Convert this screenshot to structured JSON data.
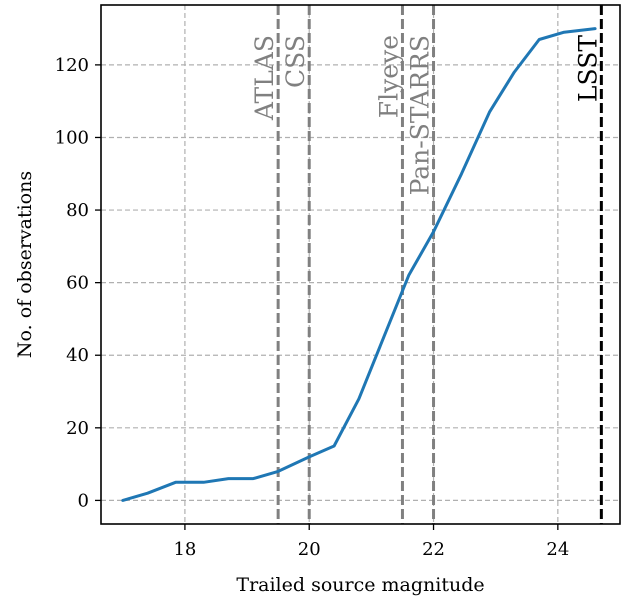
{
  "chart_data": {
    "type": "line",
    "xlabel": "Trailed source magnitude",
    "ylabel": "No. of observations",
    "xlim": [
      16.65,
      25.0
    ],
    "ylim": [
      -6.5,
      136.5
    ],
    "xticks": [
      18,
      20,
      22,
      24
    ],
    "yticks": [
      0,
      20,
      40,
      60,
      80,
      100,
      120
    ],
    "grid": true,
    "series": [
      {
        "color": "#1f77b4",
        "x": [
          17.0,
          17.4,
          17.85,
          18.3,
          18.7,
          19.1,
          19.5,
          20.0,
          20.4,
          20.8,
          21.2,
          21.6,
          22.0,
          22.45,
          22.9,
          23.3,
          23.7,
          24.1,
          24.6
        ],
        "y": [
          0,
          2,
          5,
          5,
          6,
          6,
          8,
          12,
          15,
          28,
          45,
          62,
          74,
          90,
          107,
          118,
          127,
          129,
          130
        ]
      }
    ],
    "vlines": [
      {
        "x": 19.5,
        "label": "ATLAS",
        "color": "#808080"
      },
      {
        "x": 20.0,
        "label": "CSS",
        "color": "#808080"
      },
      {
        "x": 21.5,
        "label": "Flyeye",
        "color": "#808080"
      },
      {
        "x": 22.0,
        "label": "Pan-STARRS",
        "color": "#808080"
      },
      {
        "x": 24.7,
        "label": "LSST",
        "color": "#000000"
      }
    ]
  }
}
